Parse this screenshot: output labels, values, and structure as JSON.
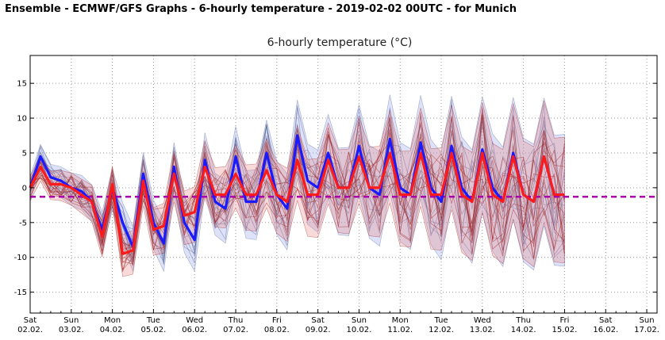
{
  "page": {
    "title": "Ensemble - ECMWF/GFS Graphs - 6-hourly temperature - 2019-02-02 00UTC - for Munich"
  },
  "chart_data": {
    "type": "line",
    "title": "6-hourly temperature (°C)",
    "ylim": [
      -18,
      19
    ],
    "yticks": [
      15,
      10,
      5,
      0,
      -5,
      -10,
      -15
    ],
    "grid": true,
    "x_day_labels": [
      {
        "dow": "Sat",
        "date": "02.02."
      },
      {
        "dow": "Sun",
        "date": "03.02."
      },
      {
        "dow": "Mon",
        "date": "04.02."
      },
      {
        "dow": "Tue",
        "date": "05.02."
      },
      {
        "dow": "Wed",
        "date": "06.02."
      },
      {
        "dow": "Thu",
        "date": "07.02."
      },
      {
        "dow": "Fri",
        "date": "08.02."
      },
      {
        "dow": "Sat",
        "date": "09.02."
      },
      {
        "dow": "Sun",
        "date": "10.02."
      },
      {
        "dow": "Mon",
        "date": "11.02."
      },
      {
        "dow": "Tue",
        "date": "12.02."
      },
      {
        "dow": "Wed",
        "date": "13.02."
      },
      {
        "dow": "Thu",
        "date": "14.02."
      },
      {
        "dow": "Fri",
        "date": "15.02."
      },
      {
        "dow": "Sat",
        "date": "16.02."
      },
      {
        "dow": "Sun",
        "date": "17.02."
      }
    ],
    "series": [
      {
        "model": "GFS",
        "role": "control",
        "color": "#1a1aff",
        "values": [
          0,
          4.5,
          1.5,
          1,
          0,
          -0.5,
          -2,
          -6,
          0,
          -5,
          -8.5,
          2,
          -5,
          -8,
          3,
          -5,
          -7.5,
          4,
          -2,
          -3,
          4.5,
          -2,
          -2,
          5,
          -1,
          -3,
          7.5,
          1,
          0,
          5,
          0,
          0,
          6,
          0,
          -1,
          7,
          0,
          -1,
          6.5,
          0,
          -2,
          6,
          0,
          -2,
          5.5,
          0,
          -2,
          5,
          -1,
          -2,
          4.5,
          -1,
          -1
        ],
        "spread_color": "#6f7fd6"
      },
      {
        "model": "ECMWF",
        "role": "control",
        "color": "#ff1a1a",
        "values": [
          0,
          3,
          0.5,
          0.5,
          0,
          -1,
          -2,
          -7,
          0.5,
          -9.5,
          -9,
          1,
          -6,
          -5.5,
          2,
          -4,
          -3.5,
          3,
          -1,
          -1,
          2,
          -1,
          -1,
          2.5,
          -1,
          -2,
          4,
          -1,
          -1,
          4,
          0,
          0,
          4.5,
          0,
          0,
          5,
          -1,
          -1,
          5,
          -1,
          -1,
          5,
          -1,
          -2,
          5,
          -1,
          -2,
          4.5,
          -1,
          -2,
          4.5,
          -1,
          -1
        ],
        "spread_color": "#d95c5c"
      },
      {
        "model": "Reference",
        "role": "freezing-offset line",
        "color": "#aa00aa",
        "values": [
          -1.3,
          -1.3
        ]
      }
    ]
  }
}
